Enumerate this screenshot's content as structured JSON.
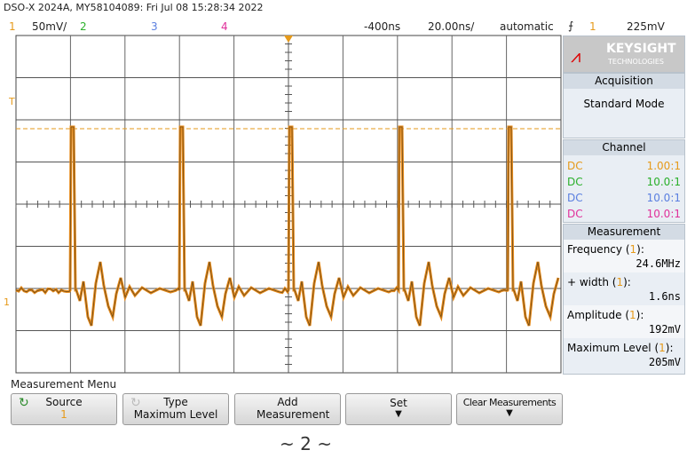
{
  "header": {
    "title": "DSO-X 2024A, MY58104089: Fri Jul 08 15:28:34 2022"
  },
  "status": {
    "ch1": "1",
    "ch1_scale": "50mV/",
    "ch2": "2",
    "ch3": "3",
    "ch4": "4",
    "delay": "-400ns",
    "timebase": "20.00ns/",
    "trigger_mode": "automatic",
    "trigger_source": "1",
    "trigger_level": "225mV"
  },
  "logo": {
    "brand": "KEYSIGHT",
    "sub": "TECHNOLOGIES"
  },
  "acquisition": {
    "title": "Acquisition",
    "mode": "Standard Mode"
  },
  "channel": {
    "title": "Channel",
    "rows": [
      [
        "DC",
        "1.00:1"
      ],
      [
        "DC",
        "10.0:1"
      ],
      [
        "DC",
        "10.0:1"
      ],
      [
        "DC",
        "10.0:1"
      ]
    ]
  },
  "measurement": {
    "title": "Measurement",
    "items": [
      {
        "label": "Frequency",
        "src": "1",
        "value": "24.6MHz"
      },
      {
        "label": "+ width",
        "src": "1",
        "value": "1.6ns"
      },
      {
        "label": "Amplitude",
        "src": "1",
        "value": "192mV"
      },
      {
        "label": "Maximum Level",
        "src": "1",
        "value": "205mV"
      }
    ]
  },
  "menu": {
    "title": "Measurement Menu",
    "buttons": [
      {
        "label": "Source",
        "sub": "1"
      },
      {
        "label": "Type",
        "sub": "Maximum Level"
      },
      {
        "label": "Add Measurement"
      },
      {
        "label": "Set"
      },
      {
        "label": "Clear Measurements"
      }
    ]
  },
  "footer": {
    "page": "~ 2 ~"
  }
}
